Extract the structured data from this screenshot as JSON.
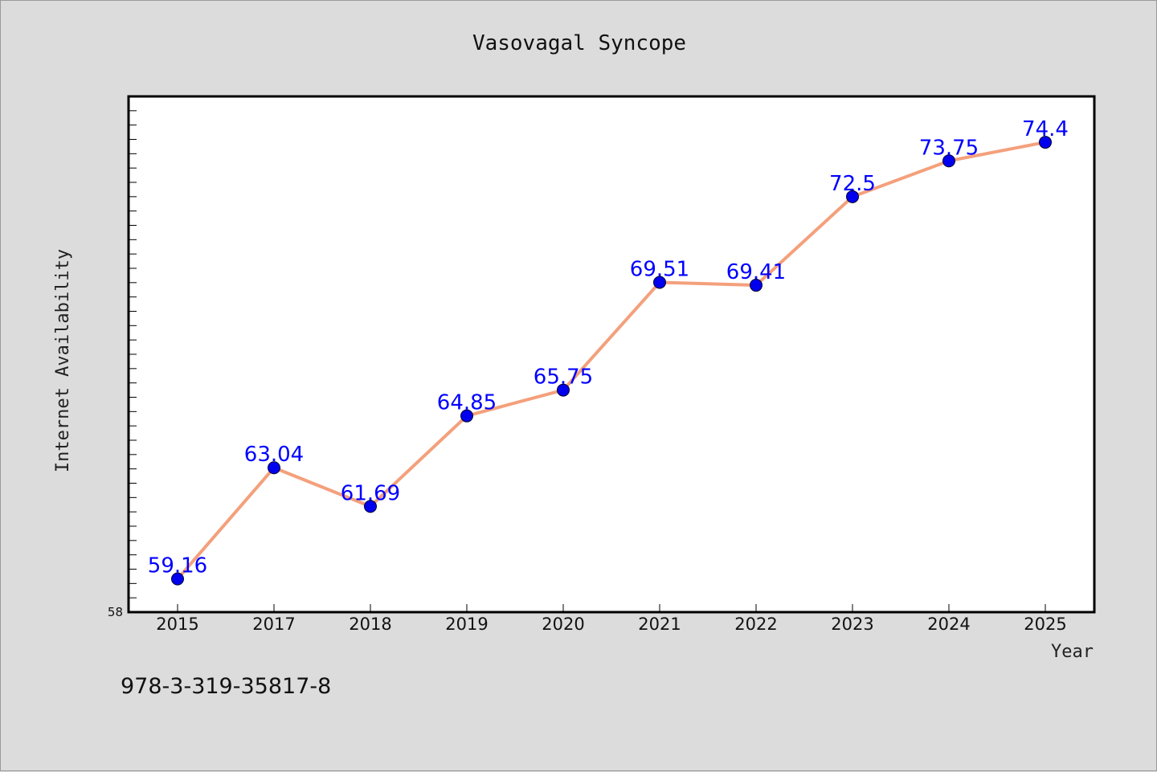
{
  "chart_data": {
    "type": "line",
    "title": "Vasovagal Syncope",
    "xlabel": "Year",
    "ylabel": "Internet Availability",
    "categories": [
      "2015",
      "2017",
      "2018",
      "2019",
      "2020",
      "2021",
      "2022",
      "2023",
      "2024",
      "2025"
    ],
    "series": [
      {
        "values": [
          59.16,
          63.04,
          61.69,
          64.85,
          65.75,
          69.51,
          69.41,
          72.5,
          73.75,
          74.4
        ],
        "data_labels": [
          "59.16",
          "63.04",
          "61.69",
          "64.85",
          "65.75",
          "69.51",
          "69.41",
          "72.5",
          "73.75",
          "74.4"
        ]
      }
    ],
    "ylim": [
      58,
      76
    ],
    "ytick_labels": [
      "58"
    ],
    "grid": false,
    "legend": "none",
    "colors": {
      "line": "#f4a07c",
      "marker": "#0000ee",
      "data_label": "#0000ff",
      "plot_background": "#ffffff",
      "page_background": "#dcdcdc"
    }
  },
  "footnote": "978-3-319-35817-8"
}
